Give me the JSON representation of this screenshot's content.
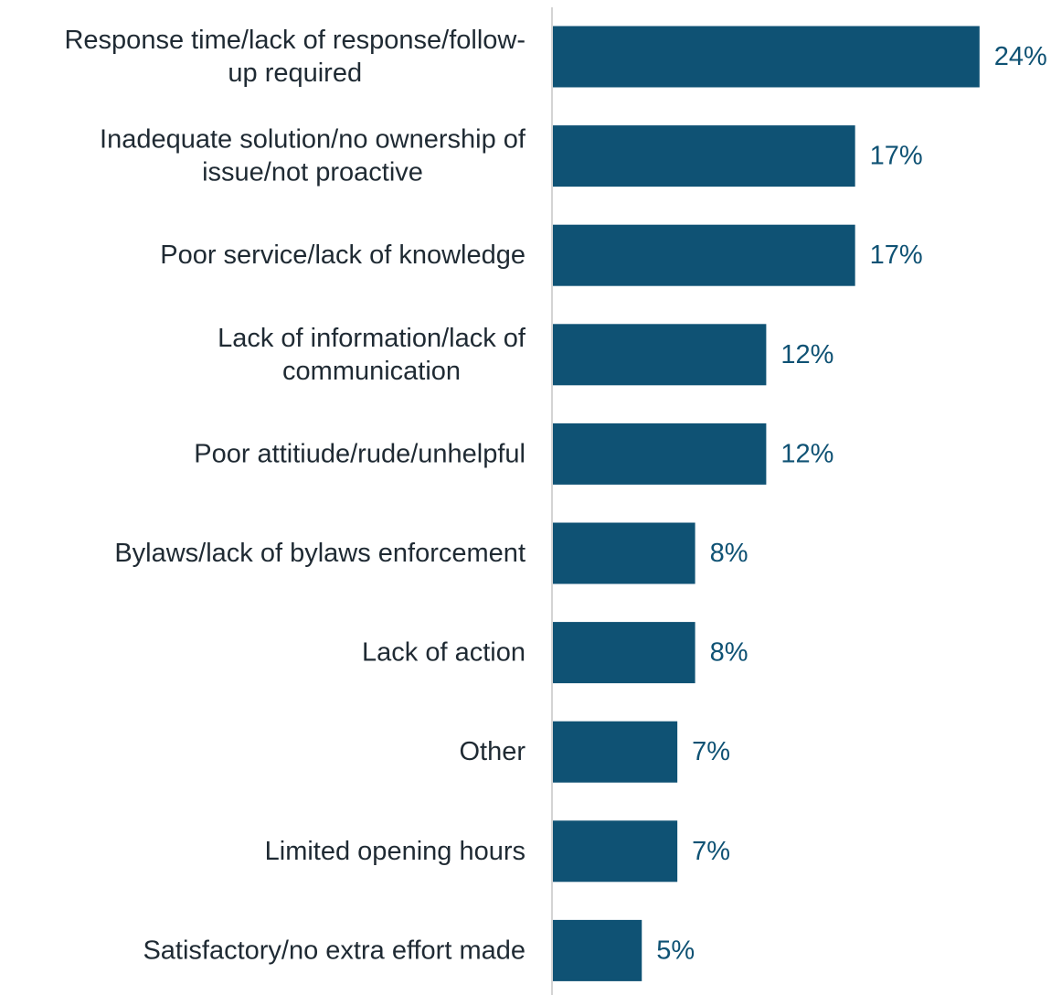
{
  "chart_data": {
    "type": "bar",
    "orientation": "horizontal",
    "categories": [
      [
        "Response time/lack of response/follow-",
        "up required"
      ],
      [
        "Inadequate solution/no ownership of",
        "issue/not proactive"
      ],
      [
        "Poor service/lack of knowledge"
      ],
      [
        "Lack of information/lack of",
        "communication"
      ],
      [
        "Poor attitiude/rude/unhelpful"
      ],
      [
        "Bylaws/lack of bylaws enforcement"
      ],
      [
        "Lack of action"
      ],
      [
        "Other"
      ],
      [
        "Limited opening hours"
      ],
      [
        "Satisfactory/no extra effort made"
      ]
    ],
    "values": [
      24,
      17,
      17,
      12,
      12,
      8,
      8,
      7,
      7,
      5
    ],
    "value_labels": [
      "24%",
      "17%",
      "17%",
      "12%",
      "12%",
      "8%",
      "8%",
      "7%",
      "7%",
      "5%"
    ],
    "unit": "%",
    "bar_color": "#0f5274",
    "label_color": "#0f5274",
    "axis_color": "#d4d4d4",
    "grid": false,
    "legend": "none"
  }
}
